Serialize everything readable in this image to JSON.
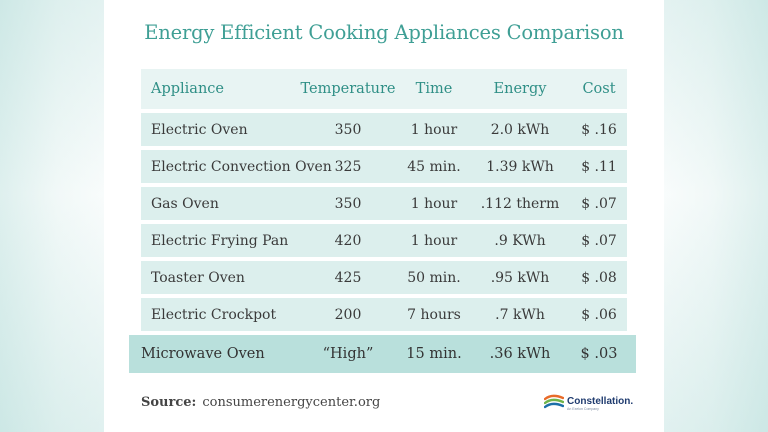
{
  "title": "Energy Efficient Cooking Appliances Comparison",
  "table": {
    "headers": [
      "Appliance",
      "Temperature",
      "Time",
      "Energy",
      "Cost"
    ],
    "rows": [
      [
        "Electric Oven",
        "350",
        "1 hour",
        "2.0 kWh",
        "$ .16"
      ],
      [
        "Electric Convection Oven",
        "325",
        "45 min.",
        "1.39 kWh",
        "$ .11"
      ],
      [
        "Gas Oven",
        "350",
        "1 hour",
        ".112 therm",
        "$ .07"
      ],
      [
        "Electric Frying Pan",
        "420",
        "1 hour",
        ".9 KWh",
        "$ .07"
      ],
      [
        "Toaster Oven",
        "425",
        "50 min.",
        ".95 kWh",
        "$ .08"
      ],
      [
        "Electric Crockpot",
        "200",
        "7 hours",
        ".7 kWh",
        "$ .06"
      ],
      [
        "Microwave Oven",
        "“High”",
        "15 min.",
        ".36 kWh",
        "$ .03"
      ]
    ]
  },
  "source": {
    "label": "Source:",
    "text": "consumerenergycenter.org"
  },
  "logo": {
    "name": "Constellation.",
    "tagline": "An Exelon Company"
  },
  "colors": {
    "title": "#3f9f95",
    "header_text": "#2f8f86",
    "row_bg": "#dcefed",
    "highlight_bg": "#b9e0dc",
    "logo_text": "#1f3b6f"
  }
}
